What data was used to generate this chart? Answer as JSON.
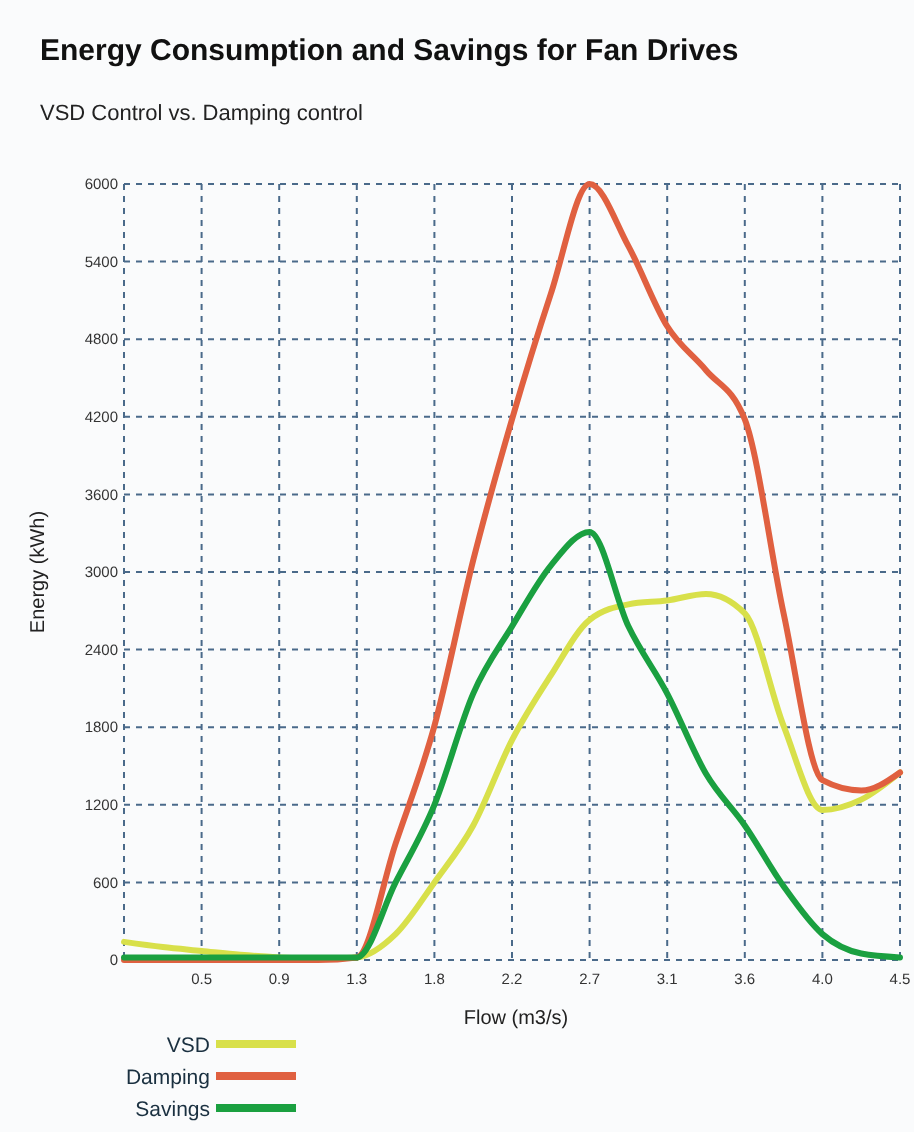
{
  "chart_data": {
    "type": "line",
    "title": "Energy Consumption and Savings for Fan Drives",
    "subtitle": "VSD Control vs. Damping control",
    "xlabel": "Flow (m3/s)",
    "ylabel": "Energy (kWh)",
    "categories": [
      null,
      null,
      "0.5",
      null,
      "0.9",
      null,
      "1.3",
      null,
      "1.8",
      null,
      "2.2",
      null,
      "2.7",
      null,
      "3.1",
      null,
      "3.6",
      null,
      "4.0",
      null,
      "4.5"
    ],
    "series": [
      {
        "name": "VSD",
        "color": "#d8e04a",
        "values": [
          140,
          100,
          70,
          40,
          20,
          10,
          20,
          200,
          600,
          1040,
          1700,
          2200,
          2630,
          2750,
          2780,
          2830,
          2680,
          1810,
          1160,
          1240,
          1450
        ]
      },
      {
        "name": "Damping",
        "color": "#e06040",
        "values": [
          0,
          0,
          0,
          0,
          0,
          0,
          20,
          900,
          1810,
          3090,
          4180,
          5150,
          6000,
          5520,
          4900,
          4560,
          4180,
          2680,
          1390,
          1310,
          1450
        ]
      },
      {
        "name": "Savings",
        "color": "#1aa040",
        "values": [
          20,
          20,
          20,
          20,
          20,
          20,
          20,
          600,
          1200,
          2060,
          2580,
          3050,
          3310,
          2580,
          2060,
          1440,
          1040,
          570,
          200,
          50,
          20
        ]
      }
    ],
    "ylim": [
      0,
      6000
    ],
    "yticks": [
      0,
      600,
      1200,
      1800,
      2400,
      3000,
      3600,
      4200,
      4800,
      5400,
      6000
    ],
    "grid": true,
    "legend": "bottom left",
    "line_style": "solid",
    "marker": "none"
  }
}
